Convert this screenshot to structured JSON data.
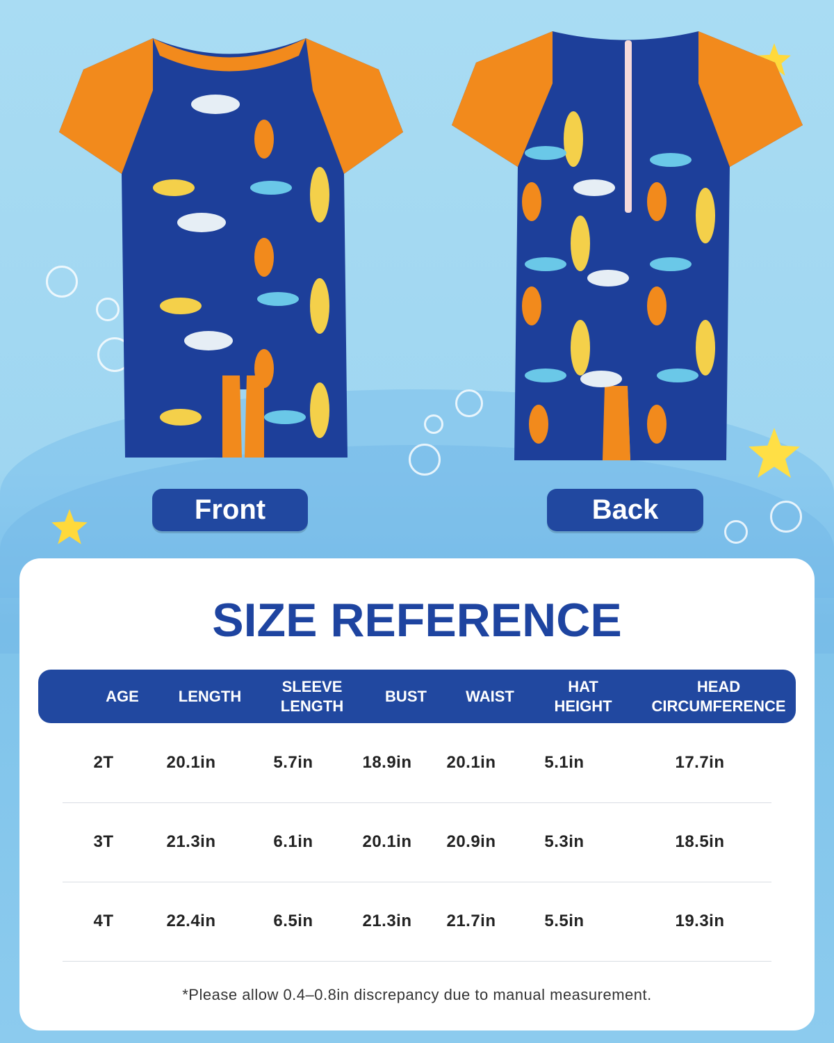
{
  "labels": {
    "front": "Front",
    "back": "Back"
  },
  "colors": {
    "navy": "#1d3f9a",
    "orange": "#f28a1c",
    "accent": "#2148a0",
    "title": "#1e44a0"
  },
  "card": {
    "title": "SIZE REFERENCE",
    "headers": [
      "AGE",
      "LENGTH",
      "SLEEVE\nLENGTH",
      "BUST",
      "WAIST",
      "HAT\nHEIGHT",
      "HEAD\nCIRCUMFERENCE"
    ],
    "rows": [
      [
        "2T",
        "20.1in",
        "5.7in",
        "18.9in",
        "20.1in",
        "5.1in",
        "17.7in"
      ],
      [
        "3T",
        "21.3in",
        "6.1in",
        "20.1in",
        "20.9in",
        "5.3in",
        "18.5in"
      ],
      [
        "4T",
        "22.4in",
        "6.5in",
        "21.3in",
        "21.7in",
        "5.5in",
        "19.3in"
      ]
    ],
    "note": "*Please allow 0.4–0.8in discrepancy due to manual measurement."
  }
}
